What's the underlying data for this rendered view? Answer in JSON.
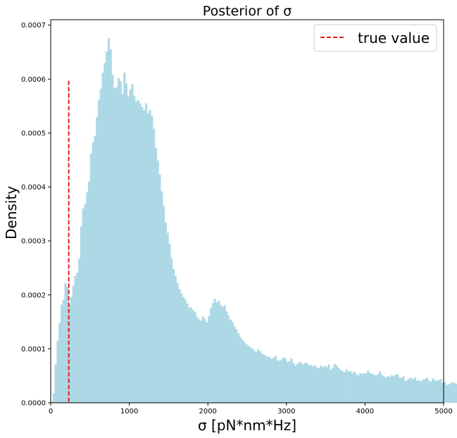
{
  "chart_data": {
    "type": "bar",
    "title": "Posterior of σ",
    "xlabel": "σ [pN*nm*Hz]",
    "ylabel": "Density",
    "xlim": [
      0,
      5000
    ],
    "ylim": [
      0,
      0.00071
    ],
    "x_ticks": [
      0,
      1000,
      2000,
      3000,
      4000,
      5000
    ],
    "y_ticks": [
      0.0,
      0.0001,
      0.0002,
      0.0003,
      0.0004,
      0.0005,
      0.0006,
      0.0007
    ],
    "y_tick_labels": [
      "0.0000",
      "0.0001",
      "0.0002",
      "0.0003",
      "0.0004",
      "0.0005",
      "0.0006",
      "0.0007"
    ],
    "grid": false,
    "legend_position": "top-right",
    "bar_color": "#add8e6",
    "bin_width": 25,
    "bin_start": 0,
    "values": [
      2.5e-06,
      1.75e-05,
      7.1e-05,
      0.000115,
      0.000148,
      0.000182,
      0.000191,
      0.000222,
      0.000215,
      0.000182,
      0.000196,
      0.000217,
      0.000235,
      0.000241,
      0.000267,
      0.000327,
      0.00036,
      0.000368,
      0.00039,
      0.00041,
      0.000462,
      0.000482,
      0.000495,
      0.00053,
      0.000562,
      0.000582,
      0.000612,
      0.00063,
      0.000651,
      0.000676,
      0.000655,
      0.000608,
      0.000583,
      0.000585,
      0.000602,
      0.000596,
      0.000572,
      0.000612,
      0.000592,
      0.000568,
      0.000581,
      0.00059,
      0.000569,
      0.000558,
      0.000561,
      0.000555,
      0.000548,
      0.000542,
      0.000555,
      0.000537,
      0.000543,
      0.000532,
      0.000508,
      0.000473,
      0.000449,
      0.000423,
      0.000392,
      0.000365,
      0.000334,
      0.000315,
      0.000295,
      0.000268,
      0.000248,
      0.000235,
      0.000222,
      0.000211,
      0.000203,
      0.000196,
      0.000191,
      0.000184,
      0.000176,
      0.000177,
      0.000172,
      0.000168,
      0.000159,
      0.000155,
      0.000152,
      0.00016,
      0.000155,
      0.000149,
      0.000161,
      0.000176,
      0.000185,
      0.000193,
      0.000186,
      0.000189,
      0.000181,
      0.000178,
      0.000181,
      0.000169,
      0.000162,
      0.000154,
      0.000149,
      0.000142,
      0.000136,
      0.000129,
      0.000122,
      0.000117,
      0.000113,
      0.000109,
      0.000106,
      0.000103,
      0.000101,
      9.7e-05,
      9.4e-05,
      9.9e-05,
      9.6e-05,
      9.1e-05,
      8.9e-05,
      8.7e-05,
      8.5e-05,
      8.5e-05,
      8.1e-05,
      8.4e-05,
      8.7e-05,
      7.9e-05,
      7.8e-05,
      8e-05,
      8.4e-05,
      8.2e-05,
      7.6e-05,
      7.7e-05,
      8.2e-05,
      7.4e-05,
      6.9e-05,
      7.2e-05,
      7.6e-05,
      7.4e-05,
      7.1e-05,
      7.4e-05,
      7.3e-05,
      6.9e-05,
      7e-05,
      6.8e-05,
      6.9e-05,
      6.6e-05,
      6.4e-05,
      6.9e-05,
      6.6e-05,
      6.8e-05,
      6.6e-05,
      7.1e-05,
      6.1e-05,
      6.4e-05,
      7.2e-05,
      6.9e-05,
      6.5e-05,
      6.1e-05,
      5.9e-05,
      5.7e-05,
      6.2e-05,
      5.8e-05,
      5.9e-05,
      5.5e-05,
      5.8e-05,
      5.3e-05,
      5.1e-05,
      5.5e-05,
      5.3e-05,
      5.5e-05,
      5.4e-05,
      5.9e-05,
      5.5e-05,
      5.4e-05,
      5.2e-05,
      5.1e-05,
      5.3e-05,
      5.8e-05,
      5.2e-05,
      4.9e-05,
      4.7e-05,
      4.9e-05,
      4.8e-05,
      5.1e-05,
      4.9e-05,
      5.2e-05,
      5.3e-05,
      4.7e-05,
      4.6e-05,
      4.9e-05,
      4e-05,
      4.2e-05,
      4.5e-05,
      4.6e-05,
      4.4e-05,
      4.7e-05,
      4.1e-05,
      4.2e-05,
      4e-05,
      4.3e-05,
      4.4e-05,
      4.7e-05,
      4.1e-05,
      3.9e-05,
      4.5e-05,
      4.2e-05,
      4.1e-05,
      4.2e-05,
      4.4e-05,
      3.7e-05,
      3.9e-05,
      3.3e-05,
      3.4e-05,
      3.6e-05,
      3.8e-05,
      3.7e-05,
      3.5e-05,
      3.3e-05,
      3.6e-05,
      3.4e-05,
      3.1e-05,
      3.3e-05,
      3.4e-05,
      3.2e-05,
      3.5e-05,
      3.1e-05,
      3e-05,
      3.2e-05,
      3.4e-05,
      3.3e-05,
      2.7e-05,
      2.9e-05,
      3.1e-05,
      2.9e-05,
      3.1e-05,
      2.8e-05
    ],
    "reference_line": {
      "name": "true value",
      "x": 230,
      "y_top": 0.000597,
      "color": "#e8191b",
      "style": "dashed"
    }
  }
}
